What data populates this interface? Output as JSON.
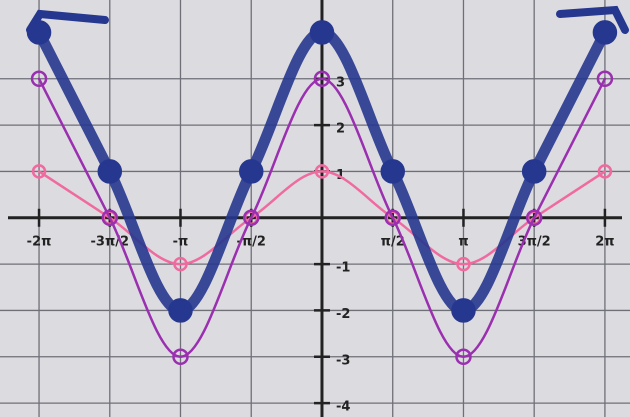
{
  "chart_data": {
    "type": "line",
    "x": [
      -6.283,
      -4.712,
      -3.142,
      -1.571,
      0,
      1.571,
      3.142,
      4.712,
      6.283
    ],
    "series": [
      {
        "color": "#f06aa0",
        "values": [
          1,
          0,
          -1,
          0,
          1,
          0,
          -1,
          0,
          1
        ]
      },
      {
        "color": "#9a2fb0",
        "values": [
          3,
          0,
          -3,
          0,
          3,
          0,
          -3,
          0,
          3
        ]
      },
      {
        "color": "#26378f",
        "values": [
          4,
          1,
          -2,
          1,
          4,
          1,
          -2,
          1,
          4
        ]
      }
    ],
    "xlim": [
      -7.15,
      6.84
    ],
    "ylim": [
      -4.3,
      4.7
    ],
    "xticks": [
      {
        "value": -6.283,
        "label": "-2π"
      },
      {
        "value": -4.712,
        "label": "-3π/2"
      },
      {
        "value": -3.142,
        "label": "-π"
      },
      {
        "value": -1.571,
        "label": "-π/2"
      },
      {
        "value": 1.571,
        "label": "π/2"
      },
      {
        "value": 3.142,
        "label": "π"
      },
      {
        "value": 4.712,
        "label": "3π/2"
      },
      {
        "value": 6.283,
        "label": "2π"
      }
    ],
    "yticks": [
      -4,
      -3,
      -2,
      -1,
      1,
      2,
      3
    ],
    "grid": true
  }
}
